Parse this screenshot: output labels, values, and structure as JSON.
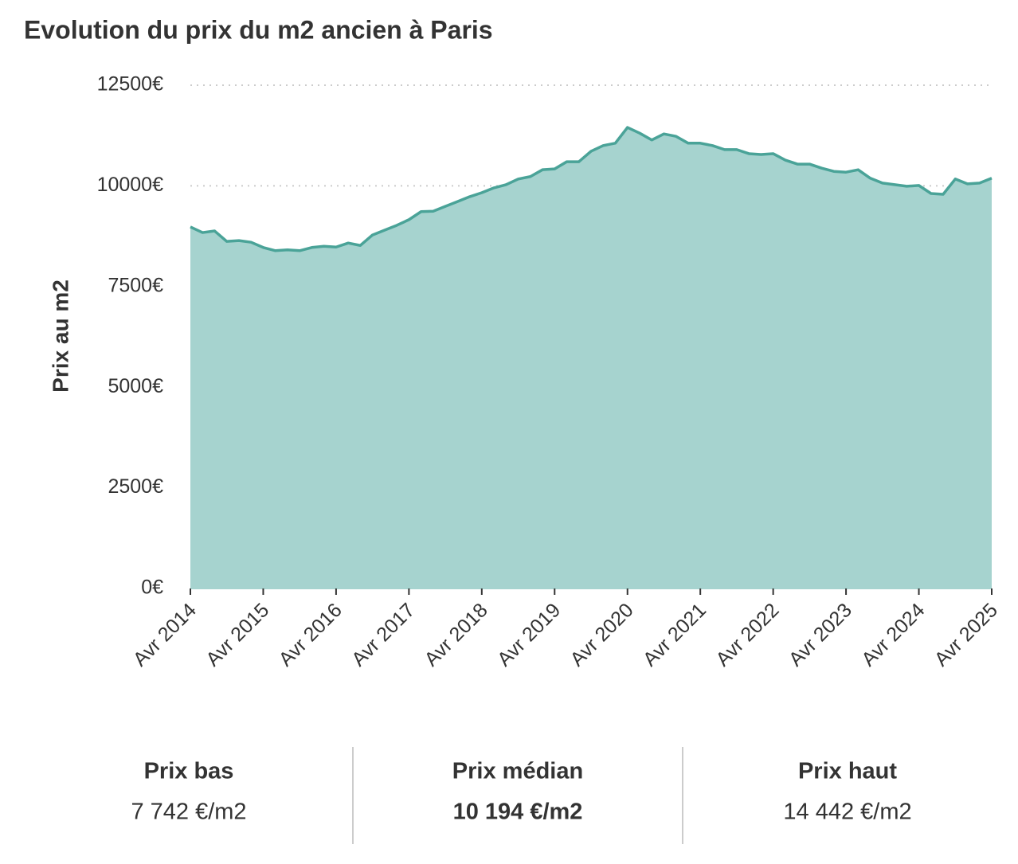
{
  "chart_data": {
    "type": "area",
    "title": "Evolution du prix du m2 ancien à Paris",
    "y_label": "Prix au m2",
    "color": "#4aa398",
    "fill": "#a6d3cf",
    "grid": true,
    "x": [
      2014.25,
      2014.417,
      2014.583,
      2014.75,
      2014.917,
      2015.083,
      2015.25,
      2015.417,
      2015.583,
      2015.75,
      2015.917,
      2016.083,
      2016.25,
      2016.417,
      2016.583,
      2016.75,
      2016.917,
      2017.083,
      2017.25,
      2017.417,
      2017.583,
      2017.75,
      2017.917,
      2018.083,
      2018.25,
      2018.417,
      2018.583,
      2018.75,
      2018.917,
      2019.083,
      2019.25,
      2019.417,
      2019.583,
      2019.75,
      2019.917,
      2020.083,
      2020.25,
      2020.417,
      2020.583,
      2020.75,
      2020.917,
      2021.083,
      2021.25,
      2021.417,
      2021.583,
      2021.75,
      2021.917,
      2022.083,
      2022.25,
      2022.417,
      2022.583,
      2022.75,
      2022.917,
      2023.083,
      2023.25,
      2023.417,
      2023.583,
      2023.75,
      2023.917,
      2024.083,
      2024.25,
      2024.417,
      2024.583,
      2024.75,
      2024.917,
      2025.083,
      2025.25
    ],
    "values": [
      8980,
      8840,
      8880,
      8620,
      8640,
      8600,
      8470,
      8390,
      8410,
      8390,
      8470,
      8500,
      8480,
      8580,
      8520,
      8780,
      8900,
      9020,
      9160,
      9360,
      9370,
      9490,
      9610,
      9730,
      9830,
      9950,
      10030,
      10170,
      10230,
      10400,
      10420,
      10600,
      10600,
      10860,
      11000,
      11060,
      11450,
      11310,
      11140,
      11290,
      11230,
      11060,
      11060,
      11000,
      10900,
      10900,
      10800,
      10780,
      10800,
      10640,
      10540,
      10540,
      10440,
      10360,
      10340,
      10400,
      10190,
      10070,
      10030,
      9990,
      10010,
      9810,
      9790,
      10170,
      10050,
      10070,
      10190
    ],
    "xlim": [
      2014.25,
      2025.25
    ],
    "xticks": [
      {
        "value": 2014.25,
        "label": "Avr 2014"
      },
      {
        "value": 2015.25,
        "label": "Avr 2015"
      },
      {
        "value": 2016.25,
        "label": "Avr 2016"
      },
      {
        "value": 2017.25,
        "label": "Avr 2017"
      },
      {
        "value": 2018.25,
        "label": "Avr 2018"
      },
      {
        "value": 2019.25,
        "label": "Avr 2019"
      },
      {
        "value": 2020.25,
        "label": "Avr 2020"
      },
      {
        "value": 2021.25,
        "label": "Avr 2021"
      },
      {
        "value": 2022.25,
        "label": "Avr 2022"
      },
      {
        "value": 2023.25,
        "label": "Avr 2023"
      },
      {
        "value": 2024.25,
        "label": "Avr 2024"
      },
      {
        "value": 2025.25,
        "label": "Avr 2025"
      }
    ],
    "ylim": [
      0,
      12500
    ],
    "yticks": [
      {
        "value": 0,
        "label": "0€"
      },
      {
        "value": 2500,
        "label": "2500€"
      },
      {
        "value": 5000,
        "label": "5000€"
      },
      {
        "value": 7500,
        "label": "7500€"
      },
      {
        "value": 10000,
        "label": "10000€"
      },
      {
        "value": 12500,
        "label": "12500€"
      }
    ]
  },
  "summary": [
    {
      "label": "Prix bas",
      "value": "7 742 €/m2"
    },
    {
      "label": "Prix médian",
      "value": "10 194 €/m2"
    },
    {
      "label": "Prix haut",
      "value": "14 442 €/m2"
    }
  ]
}
